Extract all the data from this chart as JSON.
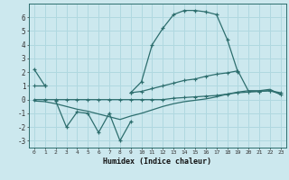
{
  "title": "",
  "xlabel": "Humidex (Indice chaleur)",
  "x": [
    0,
    1,
    2,
    3,
    4,
    5,
    6,
    7,
    8,
    9,
    10,
    11,
    12,
    13,
    14,
    15,
    16,
    17,
    18,
    19,
    20,
    21,
    22,
    23
  ],
  "line_hump": [
    2.2,
    1.0,
    null,
    null,
    null,
    null,
    null,
    null,
    null,
    0.5,
    1.3,
    4.0,
    5.2,
    6.2,
    6.5,
    6.5,
    6.4,
    6.2,
    4.4,
    2.0,
    null,
    null,
    null,
    null
  ],
  "line_upper": [
    1.0,
    1.0,
    null,
    null,
    null,
    null,
    null,
    null,
    null,
    0.5,
    0.6,
    0.8,
    1.0,
    1.2,
    1.4,
    1.5,
    1.7,
    1.85,
    1.95,
    2.1,
    0.6,
    0.6,
    0.65,
    0.5
  ],
  "line_zigzag": [
    null,
    null,
    -0.1,
    -2.0,
    -0.9,
    -1.0,
    -2.4,
    -1.0,
    -3.0,
    -1.6,
    null,
    null,
    null,
    null,
    null,
    null,
    null,
    null,
    null,
    null,
    null,
    null,
    null,
    null
  ],
  "line_mid": [
    0.0,
    0.0,
    0.0,
    0.0,
    0.0,
    0.0,
    0.0,
    0.0,
    0.0,
    0.0,
    0.0,
    0.0,
    0.0,
    0.1,
    0.15,
    0.2,
    0.25,
    0.3,
    0.4,
    0.5,
    0.55,
    0.6,
    0.65,
    0.4
  ],
  "line_low": [
    -0.1,
    -0.15,
    -0.3,
    -0.5,
    -0.7,
    -0.85,
    -1.05,
    -1.25,
    -1.45,
    -1.2,
    -1.0,
    -0.75,
    -0.5,
    -0.3,
    -0.15,
    -0.05,
    0.05,
    0.2,
    0.4,
    0.55,
    0.65,
    0.65,
    0.75,
    0.35
  ],
  "bg_color": "#cce8ee",
  "line_color": "#2d6e6e",
  "grid_color": "#b0d8e0",
  "ylim": [
    -3.5,
    7.0
  ],
  "xlim": [
    -0.5,
    23.5
  ],
  "yticks": [
    -3,
    -2,
    -1,
    0,
    1,
    2,
    3,
    4,
    5,
    6
  ],
  "xticks": [
    0,
    1,
    2,
    3,
    4,
    5,
    6,
    7,
    8,
    9,
    10,
    11,
    12,
    13,
    14,
    15,
    16,
    17,
    18,
    19,
    20,
    21,
    22,
    23
  ]
}
